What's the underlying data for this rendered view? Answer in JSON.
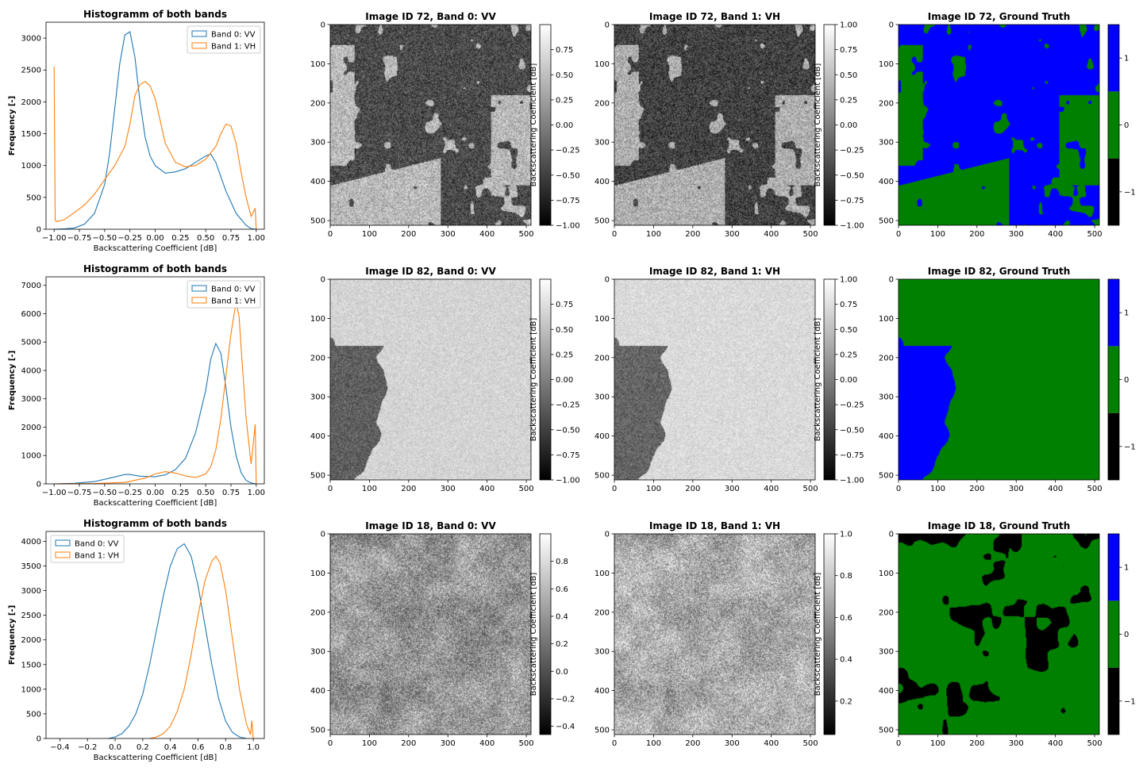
{
  "figure": {
    "background": "#ffffff"
  },
  "colors": {
    "vv": "#1f77b4",
    "vh": "#ff7f0e",
    "gt_neg1": "#000000",
    "gt_0": "#008000",
    "gt_1": "#0000ff"
  },
  "rows": [
    {
      "hist": {
        "title": "Histogramm of both bands",
        "xlabel": "Backscattering Coefficient [dB]",
        "ylabel": "Frequency [-]",
        "legend_pos": "top-right"
      },
      "vv": {
        "title": "Image ID 72, Band 0: VV",
        "cbar_label": "Backscattering Coefficient [dB]"
      },
      "vh": {
        "title": "Image ID 72, Band 1: VH",
        "cbar_label": "Backscattering Coefficient [dB]"
      },
      "gt": {
        "title": "Image ID 72, Ground Truth"
      }
    },
    {
      "hist": {
        "title": "Histogramm of both bands",
        "xlabel": "Backscattering Coefficient [dB]",
        "ylabel": "Frequency [-]",
        "legend_pos": "top-right"
      },
      "vv": {
        "title": "Image ID 82, Band 0: VV",
        "cbar_label": "Backscattering Coefficient [dB]"
      },
      "vh": {
        "title": "Image ID 82, Band 1: VH",
        "cbar_label": "Backscattering Coefficient [dB]"
      },
      "gt": {
        "title": "Image ID 82, Ground Truth"
      }
    },
    {
      "hist": {
        "title": "Histogramm of both bands",
        "xlabel": "Backscattering Coefficient [dB]",
        "ylabel": "Frequency [-]",
        "legend_pos": "top-left"
      },
      "vv": {
        "title": "Image ID 18, Band 0: VV",
        "cbar_label": "Backscattering Coefficient [dB]"
      },
      "vh": {
        "title": "Image ID 18, Band 1: VH",
        "cbar_label": "Backscattering Coefficient [dB]"
      },
      "gt": {
        "title": "Image ID 18, Ground Truth"
      }
    }
  ],
  "chart_data": [
    {
      "type": "line",
      "title": "Histogramm of both bands",
      "xlabel": "Backscattering Coefficient [dB]",
      "ylabel": "Frequency [-]",
      "xlim": [
        -1.08,
        1.08
      ],
      "ylim": [
        0,
        3250
      ],
      "xticks": [
        -1.0,
        -0.75,
        -0.5,
        -0.25,
        0.0,
        0.25,
        0.5,
        0.75,
        1.0
      ],
      "xtick_labels": [
        "−1.00",
        "−0.75",
        "−0.50",
        "−0.25",
        "0.00",
        "0.25",
        "0.50",
        "0.75",
        "1.00"
      ],
      "yticks": [
        0,
        500,
        1000,
        1500,
        2000,
        2500,
        3000
      ],
      "grid": false,
      "legend": "top-right",
      "series": [
        {
          "name": "Band 0: VV",
          "x": [
            -1.0,
            -0.9,
            -0.8,
            -0.7,
            -0.6,
            -0.5,
            -0.45,
            -0.4,
            -0.35,
            -0.3,
            -0.25,
            -0.2,
            -0.15,
            -0.1,
            -0.05,
            0.0,
            0.1,
            0.2,
            0.3,
            0.4,
            0.5,
            0.55,
            0.6,
            0.7,
            0.8,
            0.9,
            0.95,
            1.0
          ],
          "y": [
            0,
            5,
            20,
            80,
            250,
            700,
            1200,
            1900,
            2600,
            3050,
            3100,
            2700,
            2000,
            1450,
            1150,
            1000,
            880,
            900,
            950,
            1050,
            1150,
            1180,
            1050,
            600,
            250,
            60,
            10,
            0
          ]
        },
        {
          "name": "Band 1: VH",
          "x": [
            -1.0,
            -0.99,
            -0.98,
            -0.9,
            -0.8,
            -0.7,
            -0.6,
            -0.5,
            -0.4,
            -0.3,
            -0.25,
            -0.2,
            -0.15,
            -0.1,
            -0.05,
            0.0,
            0.05,
            0.1,
            0.2,
            0.3,
            0.4,
            0.5,
            0.6,
            0.65,
            0.7,
            0.75,
            0.8,
            0.85,
            0.9,
            0.95,
            0.99,
            1.0
          ],
          "y": [
            2550,
            150,
            120,
            150,
            260,
            380,
            550,
            780,
            1000,
            1300,
            1650,
            2100,
            2270,
            2320,
            2250,
            2050,
            1700,
            1350,
            1050,
            980,
            1000,
            1100,
            1300,
            1500,
            1650,
            1620,
            1350,
            900,
            500,
            200,
            330,
            0
          ]
        }
      ]
    },
    {
      "type": "line",
      "title": "Histogramm of both bands",
      "xlabel": "Backscattering Coefficient [dB]",
      "ylabel": "Frequency [-]",
      "xlim": [
        -1.08,
        1.08
      ],
      "ylim": [
        0,
        7300
      ],
      "xticks": [
        -1.0,
        -0.75,
        -0.5,
        -0.25,
        0.0,
        0.25,
        0.5,
        0.75,
        1.0
      ],
      "xtick_labels": [
        "−1.00",
        "−0.75",
        "−0.50",
        "−0.25",
        "0.00",
        "0.25",
        "0.50",
        "0.75",
        "1.00"
      ],
      "yticks": [
        0,
        1000,
        2000,
        3000,
        4000,
        5000,
        6000,
        7000
      ],
      "grid": false,
      "legend": "top-right",
      "series": [
        {
          "name": "Band 0: VV",
          "x": [
            -1.0,
            -0.8,
            -0.6,
            -0.45,
            -0.3,
            -0.25,
            -0.15,
            0.0,
            0.1,
            0.2,
            0.3,
            0.4,
            0.5,
            0.55,
            0.6,
            0.65,
            0.7,
            0.75,
            0.8,
            0.85,
            0.9,
            0.95,
            1.0
          ],
          "y": [
            0,
            20,
            80,
            200,
            330,
            330,
            270,
            250,
            320,
            500,
            900,
            1800,
            3300,
            4400,
            4950,
            4600,
            3400,
            2000,
            1000,
            400,
            120,
            30,
            0
          ]
        },
        {
          "name": "Band 1: VH",
          "x": [
            -1.0,
            -0.6,
            -0.3,
            -0.1,
            0.0,
            0.1,
            0.2,
            0.3,
            0.4,
            0.5,
            0.55,
            0.6,
            0.65,
            0.7,
            0.75,
            0.8,
            0.83,
            0.86,
            0.9,
            0.95,
            0.99,
            1.0
          ],
          "y": [
            0,
            10,
            50,
            200,
            350,
            430,
            380,
            280,
            220,
            350,
            600,
            1200,
            2300,
            3800,
            5300,
            6400,
            5900,
            4300,
            2300,
            700,
            2100,
            0
          ]
        }
      ]
    },
    {
      "type": "line",
      "title": "Histogramm of both bands",
      "xlabel": "Backscattering Coefficient [dB]",
      "ylabel": "Frequency [-]",
      "xlim": [
        -0.5,
        1.08
      ],
      "ylim": [
        0,
        4200
      ],
      "xticks": [
        -0.4,
        -0.2,
        0.0,
        0.2,
        0.4,
        0.6,
        0.8,
        1.0
      ],
      "xtick_labels": [
        "−0.4",
        "−0.2",
        "0.0",
        "0.2",
        "0.4",
        "0.6",
        "0.8",
        "1.0"
      ],
      "yticks": [
        0,
        500,
        1000,
        1500,
        2000,
        2500,
        3000,
        3500,
        4000
      ],
      "grid": false,
      "legend": "top-left",
      "series": [
        {
          "name": "Band 0: VV",
          "x": [
            -0.05,
            0.0,
            0.05,
            0.1,
            0.15,
            0.2,
            0.25,
            0.3,
            0.35,
            0.4,
            0.45,
            0.5,
            0.55,
            0.6,
            0.65,
            0.7,
            0.75,
            0.8,
            0.85,
            0.9,
            0.95
          ],
          "y": [
            0,
            30,
            100,
            250,
            500,
            900,
            1500,
            2200,
            2900,
            3500,
            3850,
            3950,
            3700,
            3100,
            2300,
            1500,
            800,
            350,
            120,
            30,
            0
          ]
        },
        {
          "name": "Band 1: VH",
          "x": [
            0.25,
            0.3,
            0.35,
            0.4,
            0.45,
            0.5,
            0.55,
            0.6,
            0.65,
            0.7,
            0.73,
            0.76,
            0.8,
            0.85,
            0.9,
            0.95,
            0.98,
            0.99,
            1.0
          ],
          "y": [
            0,
            30,
            100,
            250,
            550,
            1000,
            1700,
            2500,
            3200,
            3600,
            3700,
            3550,
            3000,
            2000,
            1000,
            300,
            80,
            360,
            0
          ]
        }
      ]
    },
    {
      "type": "heatmap",
      "title": "Image ID 72, Band 0: VV",
      "xlim": [
        0,
        512
      ],
      "ylim": [
        512,
        0
      ],
      "xticks": [
        0,
        100,
        200,
        300,
        400,
        500
      ],
      "yticks": [
        0,
        100,
        200,
        300,
        400,
        500
      ],
      "colorbar": {
        "label": "Backscattering Coefficient [dB]",
        "range": [
          -1.0,
          1.0
        ],
        "ticks": [
          0.75,
          0.5,
          0.25,
          0.0,
          -0.25,
          -0.5,
          -0.75,
          -1.0
        ],
        "tick_labels": [
          "0.75",
          "0.50",
          "0.25",
          "0.00",
          "−0.25",
          "−0.50",
          "−0.75",
          "−1.00"
        ],
        "cmap": "gray"
      }
    },
    {
      "type": "heatmap",
      "title": "Image ID 72, Band 1: VH",
      "xlim": [
        0,
        512
      ],
      "ylim": [
        512,
        0
      ],
      "xticks": [
        0,
        100,
        200,
        300,
        400,
        500
      ],
      "yticks": [
        0,
        100,
        200,
        300,
        400,
        500
      ],
      "colorbar": {
        "label": "Backscattering Coefficient [dB]",
        "range": [
          -1.0,
          1.0
        ],
        "ticks": [
          1.0,
          0.75,
          0.5,
          0.25,
          0.0,
          -0.25,
          -0.5,
          -0.75,
          -1.0
        ],
        "tick_labels": [
          "1.00",
          "0.75",
          "0.50",
          "0.25",
          "0.00",
          "−0.25",
          "−0.50",
          "−0.75",
          "−1.00"
        ],
        "cmap": "gray"
      }
    },
    {
      "type": "heatmap",
      "title": "Image ID 72, Ground Truth",
      "xlim": [
        0,
        512
      ],
      "ylim": [
        512,
        0
      ],
      "xticks": [
        0,
        100,
        200,
        300,
        400,
        500
      ],
      "yticks": [
        0,
        100,
        200,
        300,
        400,
        500
      ],
      "colorbar": {
        "ticks": [
          1,
          0,
          -1
        ],
        "tick_labels": [
          "1",
          "0",
          "−1"
        ],
        "colors": [
          "#000000",
          "#008000",
          "#0000ff"
        ]
      }
    },
    {
      "type": "heatmap",
      "title": "Image ID 82, Band 0: VV",
      "xlim": [
        0,
        512
      ],
      "ylim": [
        512,
        0
      ],
      "xticks": [
        0,
        100,
        200,
        300,
        400,
        500
      ],
      "yticks": [
        0,
        100,
        200,
        300,
        400,
        500
      ],
      "colorbar": {
        "label": "Backscattering Coefficient [dB]",
        "range": [
          -1.0,
          1.0
        ],
        "ticks": [
          0.75,
          0.5,
          0.25,
          0.0,
          -0.25,
          -0.5,
          -0.75,
          -1.0
        ],
        "tick_labels": [
          "0.75",
          "0.50",
          "0.25",
          "0.00",
          "−0.25",
          "−0.50",
          "−0.75",
          "−1.00"
        ],
        "cmap": "gray"
      }
    },
    {
      "type": "heatmap",
      "title": "Image ID 82, Band 1: VH",
      "xlim": [
        0,
        512
      ],
      "ylim": [
        512,
        0
      ],
      "xticks": [
        0,
        100,
        200,
        300,
        400,
        500
      ],
      "yticks": [
        0,
        100,
        200,
        300,
        400,
        500
      ],
      "colorbar": {
        "label": "Backscattering Coefficient [dB]",
        "range": [
          -1.0,
          1.0
        ],
        "ticks": [
          1.0,
          0.75,
          0.5,
          0.25,
          0.0,
          -0.25,
          -0.5,
          -0.75,
          -1.0
        ],
        "tick_labels": [
          "1.00",
          "0.75",
          "0.50",
          "0.25",
          "0.00",
          "−0.25",
          "−0.50",
          "−0.75",
          "−1.00"
        ],
        "cmap": "gray"
      }
    },
    {
      "type": "heatmap",
      "title": "Image ID 82, Ground Truth",
      "xlim": [
        0,
        512
      ],
      "ylim": [
        512,
        0
      ],
      "xticks": [
        0,
        100,
        200,
        300,
        400,
        500
      ],
      "yticks": [
        0,
        100,
        200,
        300,
        400,
        500
      ],
      "colorbar": {
        "ticks": [
          1,
          0,
          -1
        ],
        "tick_labels": [
          "1",
          "0",
          "−1"
        ],
        "colors": [
          "#000000",
          "#008000",
          "#0000ff"
        ]
      }
    },
    {
      "type": "heatmap",
      "title": "Image ID 18, Band 0: VV",
      "xlim": [
        0,
        512
      ],
      "ylim": [
        512,
        0
      ],
      "xticks": [
        0,
        100,
        200,
        300,
        400,
        500
      ],
      "yticks": [
        0,
        100,
        200,
        300,
        400,
        500
      ],
      "colorbar": {
        "label": "Backscattering Coefficient [dB]",
        "range": [
          -0.46,
          1.0
        ],
        "ticks": [
          0.8,
          0.6,
          0.4,
          0.2,
          0.0,
          -0.2,
          -0.4
        ],
        "tick_labels": [
          "0.8",
          "0.6",
          "0.4",
          "0.2",
          "0.0",
          "−0.2",
          "−0.4"
        ],
        "cmap": "gray"
      }
    },
    {
      "type": "heatmap",
      "title": "Image ID 18, Band 1: VH",
      "xlim": [
        0,
        512
      ],
      "ylim": [
        512,
        0
      ],
      "xticks": [
        0,
        100,
        200,
        300,
        400,
        500
      ],
      "yticks": [
        0,
        100,
        200,
        300,
        400,
        500
      ],
      "colorbar": {
        "label": "Backscattering Coefficient [dB]",
        "range": [
          0.04,
          1.0
        ],
        "ticks": [
          1.0,
          0.8,
          0.6,
          0.4,
          0.2
        ],
        "tick_labels": [
          "1.0",
          "0.8",
          "0.6",
          "0.4",
          "0.2"
        ],
        "cmap": "gray"
      }
    },
    {
      "type": "heatmap",
      "title": "Image ID 18, Ground Truth",
      "xlim": [
        0,
        512
      ],
      "ylim": [
        512,
        0
      ],
      "xticks": [
        0,
        100,
        200,
        300,
        400,
        500
      ],
      "yticks": [
        0,
        100,
        200,
        300,
        400,
        500
      ],
      "colorbar": {
        "ticks": [
          1,
          0,
          -1
        ],
        "tick_labels": [
          "1",
          "0",
          "−1"
        ],
        "colors": [
          "#000000",
          "#008000",
          "#0000ff"
        ]
      }
    }
  ]
}
